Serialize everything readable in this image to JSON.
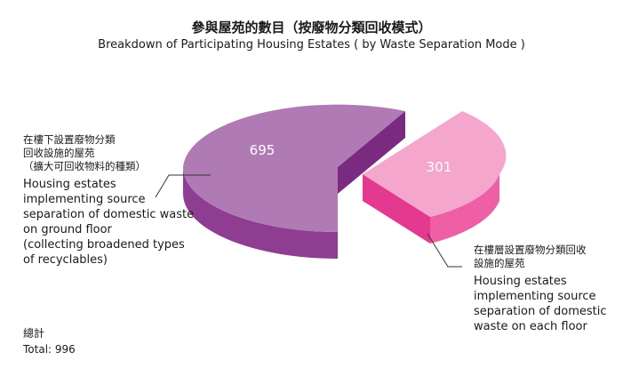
{
  "title_zh": "參與屋苑的數目（按廢物分類回收模式）",
  "title_en": "Breakdown of Participating Housing Estates ( by Waste Separation Mode )",
  "chart_data": {
    "type": "pie",
    "categories": [
      "Housing estates implementing source separation of domestic waste on ground floor (collecting broadened types of recyclables)",
      "Housing estates implementing source separation of domestic waste on each floor"
    ],
    "values": [
      695,
      301
    ],
    "colors": [
      "#b07ab5",
      "#f4a6cc"
    ],
    "side_colors": [
      "#8a3a8c",
      "#e0378e"
    ],
    "exploded": [
      false,
      true
    ]
  },
  "labels": {
    "ground_floor": {
      "zh": "在樓下設置廢物分類\n回收設施的屋苑\n（擴大可回收物料的種類）",
      "en": "Housing estates\nimplementing source\nseparation of domestic waste\non ground floor\n(collecting broadened types\nof recyclables)",
      "value": "695"
    },
    "each_floor": {
      "zh": "在樓層設置廢物分類回收\n設施的屋苑",
      "en": "Housing estates\nimplementing source\nseparation of domestic\nwaste on each floor",
      "value": "301"
    }
  },
  "total": {
    "zh": "總計",
    "en": "Total: 996"
  }
}
